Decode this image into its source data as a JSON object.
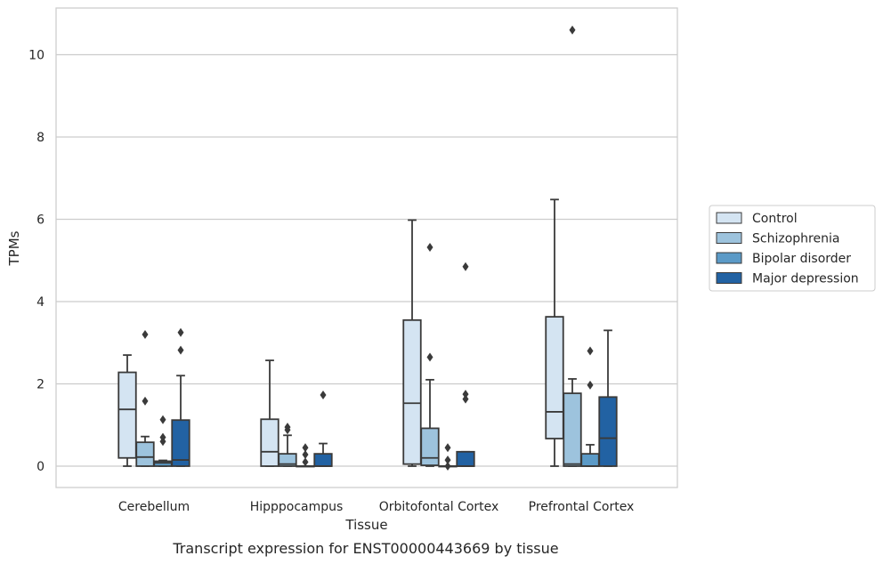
{
  "chart_data": {
    "type": "box",
    "caption": "Transcript expression for ENST00000443669 by tissue",
    "xlabel": "Tissue",
    "ylabel": "TPMs",
    "ylim": [
      -0.5,
      11.1
    ],
    "yticks": [
      0,
      2,
      4,
      6,
      8,
      10
    ],
    "grid": true,
    "legend_position": "right",
    "categories": [
      "Cerebellum",
      "Hipppocampus",
      "Orbitofontal Cortex",
      "Prefrontal Cortex"
    ],
    "series": [
      {
        "name": "Control",
        "color": "#d4e4f2",
        "boxes": [
          {
            "whisker_low": 0.0,
            "q1": 0.2,
            "median": 1.38,
            "q3": 2.28,
            "whisker_high": 2.7,
            "outliers": []
          },
          {
            "whisker_low": 0.0,
            "q1": 0.0,
            "median": 0.35,
            "q3": 1.14,
            "whisker_high": 2.57,
            "outliers": []
          },
          {
            "whisker_low": 0.0,
            "q1": 0.05,
            "median": 1.53,
            "q3": 3.55,
            "whisker_high": 5.98,
            "outliers": []
          },
          {
            "whisker_low": 0.0,
            "q1": 0.67,
            "median": 1.32,
            "q3": 3.63,
            "whisker_high": 6.48,
            "outliers": []
          }
        ]
      },
      {
        "name": "Schizophrenia",
        "color": "#9dc3dd",
        "boxes": [
          {
            "whisker_low": 0.0,
            "q1": 0.0,
            "median": 0.22,
            "q3": 0.58,
            "whisker_high": 0.72,
            "outliers": [
              3.2,
              1.58
            ]
          },
          {
            "whisker_low": 0.0,
            "q1": 0.0,
            "median": 0.05,
            "q3": 0.3,
            "whisker_high": 0.75,
            "outliers": [
              0.95,
              0.88
            ]
          },
          {
            "whisker_low": 0.0,
            "q1": 0.02,
            "median": 0.2,
            "q3": 0.92,
            "whisker_high": 2.1,
            "outliers": [
              5.32,
              2.65
            ]
          },
          {
            "whisker_low": 0.0,
            "q1": 0.0,
            "median": 0.05,
            "q3": 1.77,
            "whisker_high": 2.12,
            "outliers": [
              10.6
            ]
          }
        ]
      },
      {
        "name": "Bipolar disorder",
        "color": "#5b9ac7",
        "boxes": [
          {
            "whisker_low": 0.0,
            "q1": 0.0,
            "median": 0.08,
            "q3": 0.12,
            "whisker_high": 0.14,
            "outliers": [
              1.13,
              0.7,
              0.6
            ]
          },
          {
            "whisker_low": 0.0,
            "q1": 0.0,
            "median": 0.0,
            "q3": 0.0,
            "whisker_high": 0.0,
            "outliers": [
              0.45,
              0.28,
              0.1
            ]
          },
          {
            "whisker_low": 0.0,
            "q1": 0.0,
            "median": 0.0,
            "q3": 0.0,
            "whisker_high": 0.0,
            "outliers": [
              0.45,
              0.15,
              0.0
            ]
          },
          {
            "whisker_low": 0.0,
            "q1": 0.0,
            "median": 0.0,
            "q3": 0.3,
            "whisker_high": 0.52,
            "outliers": [
              2.8,
              1.97
            ]
          }
        ]
      },
      {
        "name": "Major depression",
        "color": "#2262a3",
        "boxes": [
          {
            "whisker_low": 0.0,
            "q1": 0.0,
            "median": 0.15,
            "q3": 1.12,
            "whisker_high": 2.2,
            "outliers": [
              3.25,
              2.82
            ]
          },
          {
            "whisker_low": 0.0,
            "q1": 0.0,
            "median": 0.0,
            "q3": 0.3,
            "whisker_high": 0.55,
            "outliers": [
              1.73
            ]
          },
          {
            "whisker_low": 0.0,
            "q1": 0.0,
            "median": 0.0,
            "q3": 0.35,
            "whisker_high": 0.35,
            "outliers": [
              4.85,
              1.75,
              1.63
            ]
          },
          {
            "whisker_low": 0.0,
            "q1": 0.0,
            "median": 0.68,
            "q3": 1.68,
            "whisker_high": 3.3,
            "outliers": []
          }
        ]
      }
    ]
  }
}
